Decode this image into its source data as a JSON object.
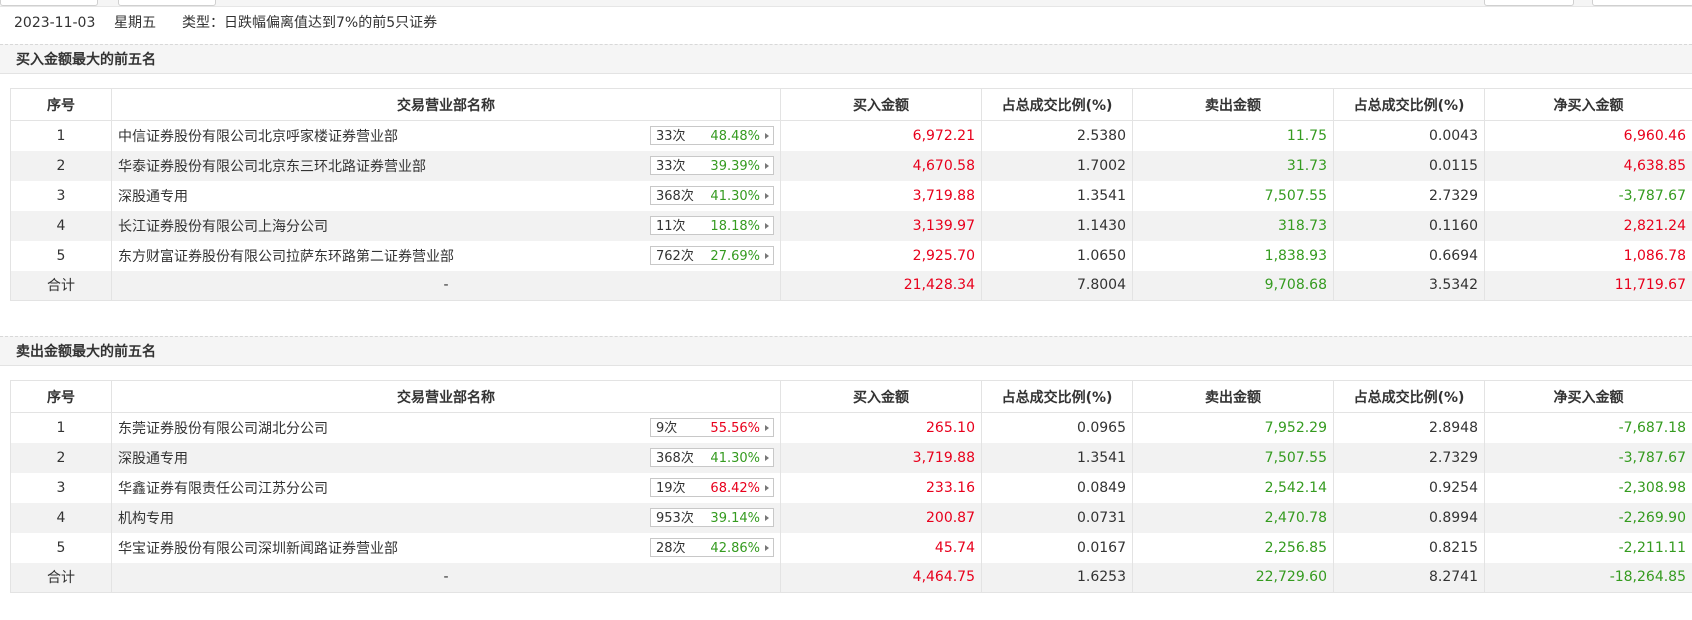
{
  "header": {
    "date": "2023-11-03",
    "weekday": "星期五",
    "type_text": "类型：日跌幅偏离值达到7%的前5只证券"
  },
  "colors": {
    "up": "#e8001c",
    "down": "#359b20"
  },
  "columns": [
    "序号",
    "交易营业部名称",
    "买入金额",
    "占总成交比例(%)",
    "卖出金额",
    "占总成交比例(%)",
    "净买入金额"
  ],
  "buy_section": {
    "title": "买入金额最大的前五名",
    "rows": [
      {
        "rank": "1",
        "name": "中信证券股份有限公司北京呼家楼证券营业部",
        "times": "33次",
        "pct": "48.48%",
        "pct_color": "green",
        "buy": "6,972.21",
        "buy_ratio": "2.5380",
        "sell": "11.75",
        "sell_ratio": "0.0043",
        "net": "6,960.46",
        "net_color": "red"
      },
      {
        "rank": "2",
        "name": "华泰证券股份有限公司北京东三环北路证券营业部",
        "times": "33次",
        "pct": "39.39%",
        "pct_color": "green",
        "buy": "4,670.58",
        "buy_ratio": "1.7002",
        "sell": "31.73",
        "sell_ratio": "0.0115",
        "net": "4,638.85",
        "net_color": "red"
      },
      {
        "rank": "3",
        "name": "深股通专用",
        "times": "368次",
        "pct": "41.30%",
        "pct_color": "green",
        "buy": "3,719.88",
        "buy_ratio": "1.3541",
        "sell": "7,507.55",
        "sell_ratio": "2.7329",
        "net": "-3,787.67",
        "net_color": "green"
      },
      {
        "rank": "4",
        "name": "长江证券股份有限公司上海分公司",
        "times": "11次",
        "pct": "18.18%",
        "pct_color": "green",
        "buy": "3,139.97",
        "buy_ratio": "1.1430",
        "sell": "318.73",
        "sell_ratio": "0.1160",
        "net": "2,821.24",
        "net_color": "red"
      },
      {
        "rank": "5",
        "name": "东方财富证券股份有限公司拉萨东环路第二证券营业部",
        "times": "762次",
        "pct": "27.69%",
        "pct_color": "green",
        "buy": "2,925.70",
        "buy_ratio": "1.0650",
        "sell": "1,838.93",
        "sell_ratio": "0.6694",
        "net": "1,086.78",
        "net_color": "red"
      }
    ],
    "total": {
      "label": "合计",
      "name": "-",
      "buy": "21,428.34",
      "buy_ratio": "7.8004",
      "sell": "9,708.68",
      "sell_ratio": "3.5342",
      "net": "11,719.67",
      "net_color": "red"
    }
  },
  "sell_section": {
    "title": "卖出金额最大的前五名",
    "rows": [
      {
        "rank": "1",
        "name": "东莞证券股份有限公司湖北分公司",
        "times": "9次",
        "pct": "55.56%",
        "pct_color": "red",
        "buy": "265.10",
        "buy_ratio": "0.0965",
        "sell": "7,952.29",
        "sell_ratio": "2.8948",
        "net": "-7,687.18",
        "net_color": "green"
      },
      {
        "rank": "2",
        "name": "深股通专用",
        "times": "368次",
        "pct": "41.30%",
        "pct_color": "green",
        "buy": "3,719.88",
        "buy_ratio": "1.3541",
        "sell": "7,507.55",
        "sell_ratio": "2.7329",
        "net": "-3,787.67",
        "net_color": "green"
      },
      {
        "rank": "3",
        "name": "华鑫证券有限责任公司江苏分公司",
        "times": "19次",
        "pct": "68.42%",
        "pct_color": "red",
        "buy": "233.16",
        "buy_ratio": "0.0849",
        "sell": "2,542.14",
        "sell_ratio": "0.9254",
        "net": "-2,308.98",
        "net_color": "green"
      },
      {
        "rank": "4",
        "name": "机构专用",
        "times": "953次",
        "pct": "39.14%",
        "pct_color": "green",
        "buy": "200.87",
        "buy_ratio": "0.0731",
        "sell": "2,470.78",
        "sell_ratio": "0.8994",
        "net": "-2,269.90",
        "net_color": "green"
      },
      {
        "rank": "5",
        "name": "华宝证券股份有限公司深圳新闻路证券营业部",
        "times": "28次",
        "pct": "42.86%",
        "pct_color": "green",
        "buy": "45.74",
        "buy_ratio": "0.0167",
        "sell": "2,256.85",
        "sell_ratio": "0.8215",
        "net": "-2,211.11",
        "net_color": "green"
      }
    ],
    "total": {
      "label": "合计",
      "name": "-",
      "buy": "4,464.75",
      "buy_ratio": "1.6253",
      "sell": "22,729.60",
      "sell_ratio": "8.2741",
      "net": "-18,264.85",
      "net_color": "green"
    }
  }
}
